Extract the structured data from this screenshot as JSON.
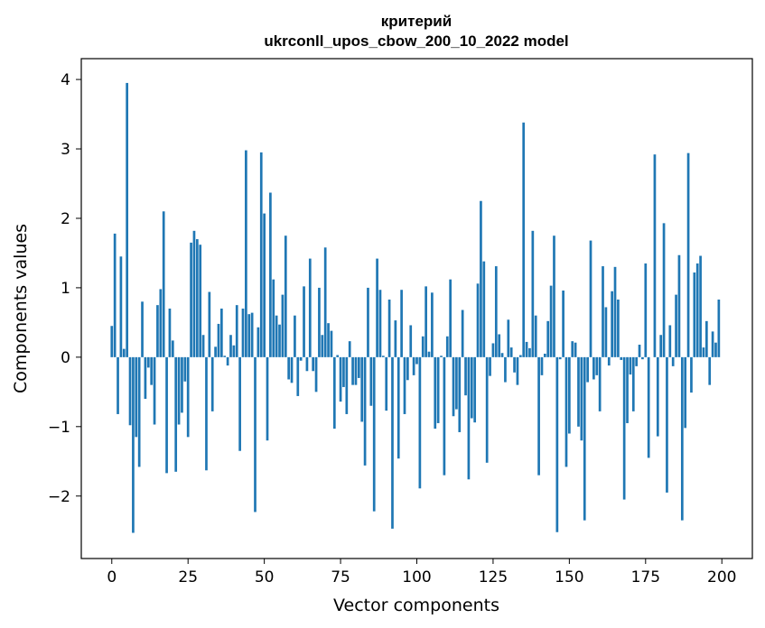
{
  "chart_data": {
    "type": "bar",
    "title_line1": "критерий",
    "title_line2": "ukrconll_upos_cbow_200_10_2022 model",
    "xlabel": "Vector components",
    "ylabel": "Components values",
    "xlim": [
      -10,
      210
    ],
    "ylim": [
      -2.9,
      4.3
    ],
    "xticks": [
      0,
      25,
      50,
      75,
      100,
      125,
      150,
      175,
      200
    ],
    "xtick_labels": [
      "0",
      "25",
      "50",
      "75",
      "100",
      "125",
      "150",
      "175",
      "200"
    ],
    "yticks": [
      -2,
      -1,
      0,
      1,
      2,
      3,
      4
    ],
    "ytick_labels": [
      "−2",
      "−1",
      "0",
      "1",
      "2",
      "3",
      "4"
    ],
    "grid": false,
    "bar_color": "#1f77b4",
    "x": [
      0,
      1,
      2,
      3,
      4,
      5,
      6,
      7,
      8,
      9,
      10,
      11,
      12,
      13,
      14,
      15,
      16,
      17,
      18,
      19,
      20,
      21,
      22,
      23,
      24,
      25,
      26,
      27,
      28,
      29,
      30,
      31,
      32,
      33,
      34,
      35,
      36,
      37,
      38,
      39,
      40,
      41,
      42,
      43,
      44,
      45,
      46,
      47,
      48,
      49,
      50,
      51,
      52,
      53,
      54,
      55,
      56,
      57,
      58,
      59,
      60,
      61,
      62,
      63,
      64,
      65,
      66,
      67,
      68,
      69,
      70,
      71,
      72,
      73,
      74,
      75,
      76,
      77,
      78,
      79,
      80,
      81,
      82,
      83,
      84,
      85,
      86,
      87,
      88,
      89,
      90,
      91,
      92,
      93,
      94,
      95,
      96,
      97,
      98,
      99,
      100,
      101,
      102,
      103,
      104,
      105,
      106,
      107,
      108,
      109,
      110,
      111,
      112,
      113,
      114,
      115,
      116,
      117,
      118,
      119,
      120,
      121,
      122,
      123,
      124,
      125,
      126,
      127,
      128,
      129,
      130,
      131,
      132,
      133,
      134,
      135,
      136,
      137,
      138,
      139,
      140,
      141,
      142,
      143,
      144,
      145,
      146,
      147,
      148,
      149,
      150,
      151,
      152,
      153,
      154,
      155,
      156,
      157,
      158,
      159,
      160,
      161,
      162,
      163,
      164,
      165,
      166,
      167,
      168,
      169,
      170,
      171,
      172,
      173,
      174,
      175,
      176,
      177,
      178,
      179,
      180,
      181,
      182,
      183,
      184,
      185,
      186,
      187,
      188,
      189,
      190,
      191,
      192,
      193,
      194,
      195,
      196,
      197,
      198,
      199
    ],
    "values": [
      0.45,
      1.78,
      -0.82,
      1.45,
      0.12,
      3.95,
      -0.98,
      -2.53,
      -1.15,
      -1.58,
      0.8,
      -0.6,
      -0.15,
      -0.4,
      -0.97,
      0.75,
      0.98,
      2.1,
      -1.67,
      0.7,
      0.24,
      -1.65,
      -0.97,
      -0.8,
      -0.35,
      -1.15,
      1.65,
      1.82,
      1.7,
      1.62,
      0.32,
      -1.63,
      0.94,
      -0.78,
      0.15,
      0.48,
      0.7,
      0.02,
      -0.12,
      0.32,
      0.17,
      0.75,
      -1.35,
      0.7,
      2.98,
      0.62,
      0.64,
      -2.23,
      0.43,
      2.95,
      2.07,
      -1.2,
      2.37,
      1.12,
      0.6,
      0.47,
      0.9,
      1.75,
      -0.32,
      -0.37,
      0.6,
      -0.56,
      -0.05,
      1.02,
      -0.2,
      1.42,
      -0.2,
      -0.5,
      1.0,
      0.32,
      1.58,
      0.49,
      0.38,
      -1.03,
      0.03,
      -0.64,
      -0.43,
      -0.82,
      0.23,
      -0.4,
      -0.4,
      -0.3,
      -0.93,
      -1.56,
      1.0,
      -0.7,
      -2.22,
      1.42,
      0.97,
      0.02,
      -0.77,
      0.83,
      -2.47,
      0.53,
      -1.46,
      0.97,
      -0.82,
      -0.33,
      0.46,
      -0.26,
      -0.1,
      -1.89,
      0.3,
      1.02,
      0.08,
      0.93,
      -1.03,
      -0.95,
      0.02,
      -1.7,
      0.3,
      1.12,
      -0.85,
      -0.75,
      -1.08,
      0.68,
      -0.55,
      -1.76,
      -0.88,
      -0.94,
      1.06,
      2.25,
      1.38,
      -1.52,
      -0.27,
      0.2,
      1.31,
      0.33,
      0.06,
      -0.36,
      0.54,
      0.14,
      -0.22,
      -0.4,
      0.03,
      3.38,
      0.22,
      0.13,
      1.82,
      0.6,
      -1.7,
      -0.26,
      0.05,
      0.52,
      1.03,
      1.75,
      -2.52,
      -0.03,
      0.96,
      -1.58,
      -1.1,
      0.23,
      0.21,
      -1.0,
      -1.2,
      -2.35,
      -0.36,
      1.68,
      -0.32,
      -0.26,
      -0.78,
      1.31,
      0.72,
      -0.12,
      0.95,
      1.3,
      0.83,
      -0.04,
      -2.05,
      -0.95,
      -0.25,
      -0.78,
      -0.13,
      0.18,
      -0.03,
      1.35,
      -1.45,
      0.0,
      2.92,
      -1.14,
      0.32,
      1.93,
      -1.95,
      0.46,
      -0.13,
      0.9,
      1.47,
      -2.35,
      -1.02,
      2.94,
      -0.51,
      1.22,
      1.35,
      1.46,
      0.14,
      0.52,
      -0.4,
      0.37,
      0.21,
      0.83
    ]
  }
}
